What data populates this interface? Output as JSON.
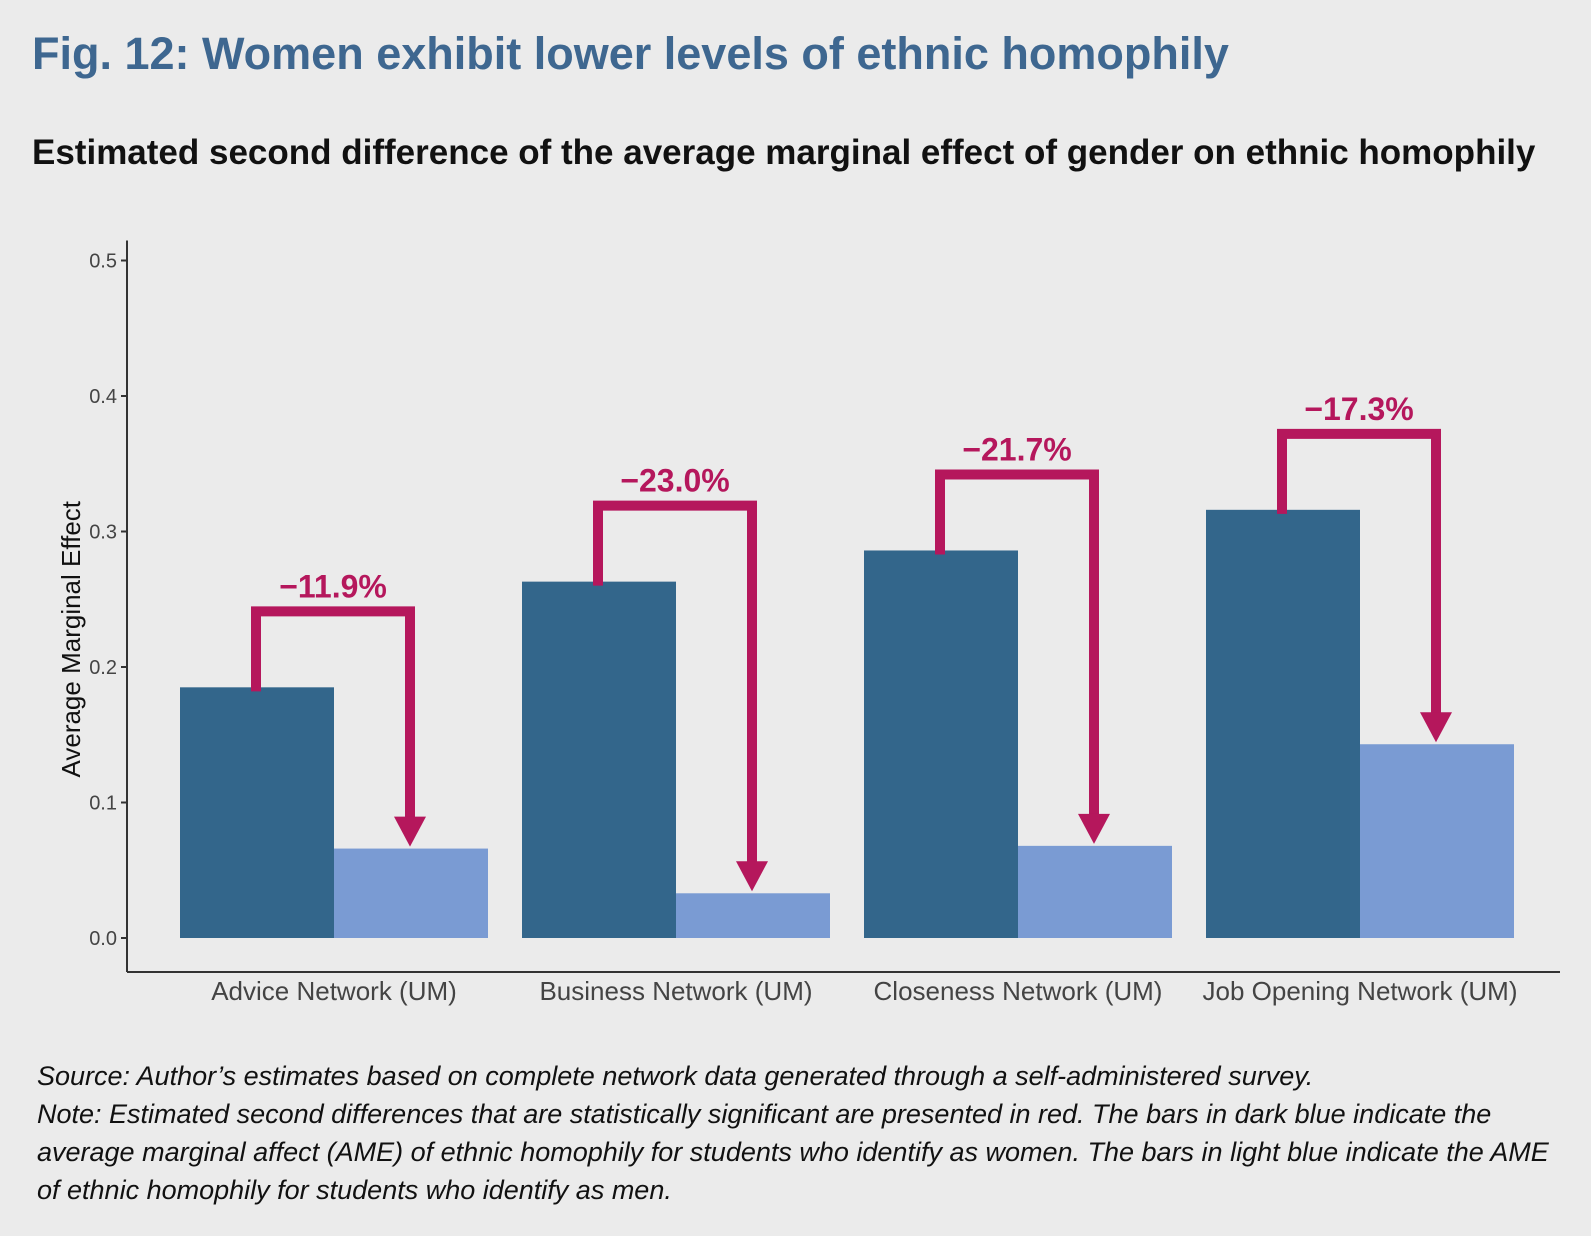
{
  "title": "Fig. 12: Women exhibit lower levels of ethnic homophily",
  "subtitle": "Estimated second difference of the average marginal effect of gender on ethnic homophily",
  "chart_data": {
    "type": "bar",
    "ylabel": "Average Marginal Effect",
    "xlabel": "",
    "ylim": [
      0,
      0.5
    ],
    "yticks": [
      "0.0",
      "0.1",
      "0.2",
      "0.3",
      "0.4",
      "0.5"
    ],
    "categories": [
      "Advice Network (UM)",
      "Business Network (UM)",
      "Closeness Network (UM)",
      "Job Opening Network (UM)"
    ],
    "series": [
      {
        "values": [
          0.185,
          0.263,
          0.286,
          0.316
        ],
        "color": "#33668b"
      },
      {
        "values": [
          0.066,
          0.033,
          0.068,
          0.143
        ],
        "color": "#7a9bd3"
      }
    ],
    "annotations": [
      "−11.9%",
      "−23.0%",
      "−21.7%",
      "−17.3%"
    ],
    "annotation_color": "#b5175c",
    "grid": false,
    "legend": "none"
  },
  "source_note": "Source: Author’s estimates based on complete network data generated through a self-administered survey.",
  "note": "Note: Estimated second differences that are statistically significant are presented in red. The bars in dark blue indicate the average marginal affect (AME) of ethnic homophily for students who identify as women. The bars in light blue indicate the AME of ethnic homophily for students who identify as men."
}
